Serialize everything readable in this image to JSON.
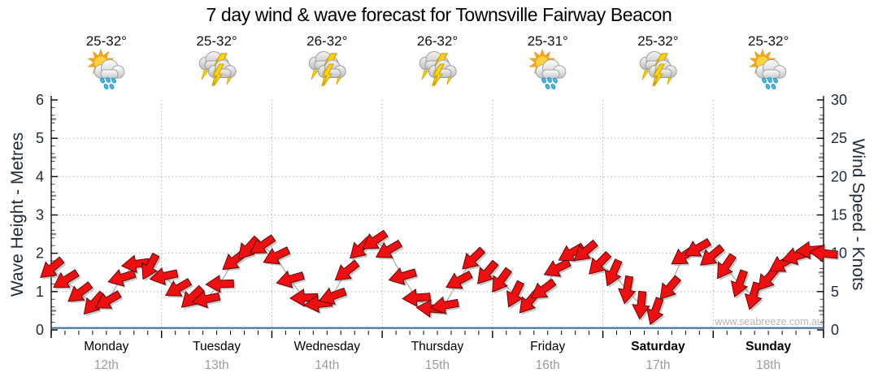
{
  "title": "7 day wind & wave forecast for Townsville Fairway Beacon",
  "watermark": "www.seabreeze.com.au",
  "axes": {
    "left_label": "Wave Height - Metres",
    "right_label": "Wind Speed - Knots",
    "left_ticks": [
      0,
      1,
      2,
      3,
      4,
      5,
      6
    ],
    "right_ticks": [
      0,
      5,
      10,
      15,
      20,
      25,
      30
    ]
  },
  "days": [
    {
      "name": "Monday",
      "date": "12th",
      "temp": "25-32°",
      "icon": "sun-shower",
      "weekend": false
    },
    {
      "name": "Tuesday",
      "date": "13th",
      "temp": "25-32°",
      "icon": "storm",
      "weekend": false
    },
    {
      "name": "Wednesday",
      "date": "14th",
      "temp": "26-32°",
      "icon": "storm",
      "weekend": false
    },
    {
      "name": "Thursday",
      "date": "15th",
      "temp": "26-32°",
      "icon": "storm",
      "weekend": false
    },
    {
      "name": "Friday",
      "date": "16th",
      "temp": "25-31°",
      "icon": "sun-shower",
      "weekend": false
    },
    {
      "name": "Saturday",
      "date": "17th",
      "temp": "25-32°",
      "icon": "storm",
      "weekend": true
    },
    {
      "name": "Sunday",
      "date": "18th",
      "temp": "25-32°",
      "icon": "sun-shower",
      "weekend": true
    }
  ],
  "chart_data": {
    "type": "line",
    "marker": "wind-arrow",
    "title": "7 day wind & wave forecast for Townsville Fairway Beacon",
    "ylabel_left": "Wave Height - Metres",
    "ylabel_right": "Wind Speed - Knots",
    "ylim_left_metres": [
      0,
      6
    ],
    "ylim_right_knots": [
      0,
      30
    ],
    "grid": true,
    "x_categories": [
      "Monday 12th",
      "Tuesday 13th",
      "Wednesday 14th",
      "Thursday 15th",
      "Friday 16th",
      "Saturday 17th",
      "Sunday 18th"
    ],
    "x_step_hours": 3,
    "n_points": 56,
    "series": [
      {
        "name": "Wind Speed",
        "unit": "knots",
        "values": [
          8.0,
          6.5,
          4.8,
          3.4,
          3.8,
          6.8,
          8.6,
          8.2,
          7.0,
          5.4,
          4.2,
          4.0,
          6.0,
          9.0,
          10.6,
          11.0,
          9.6,
          6.6,
          4.2,
          3.4,
          4.4,
          7.6,
          10.6,
          11.6,
          10.4,
          7.0,
          4.2,
          2.8,
          3.2,
          6.4,
          9.2,
          7.4,
          6.4,
          4.6,
          3.6,
          5.2,
          8.0,
          10.0,
          10.2,
          8.6,
          7.4,
          5.2,
          3.2,
          2.4,
          5.4,
          9.6,
          10.6,
          9.6,
          8.2,
          6.0,
          4.4,
          6.6,
          8.6,
          9.6,
          10.4,
          10.0
        ]
      },
      {
        "name": "Wind Arrow Rotation",
        "unit": "deg_screen_cw_from_east",
        "values": [
          140,
          148,
          143,
          132,
          150,
          163,
          172,
          118,
          168,
          150,
          136,
          168,
          178,
          142,
          132,
          146,
          154,
          164,
          178,
          174,
          160,
          142,
          136,
          146,
          150,
          164,
          176,
          184,
          170,
          152,
          136,
          130,
          126,
          116,
          130,
          144,
          154,
          150,
          140,
          134,
          114,
          100,
          96,
          110,
          130,
          146,
          150,
          140,
          124,
          110,
          106,
          130,
          150,
          164,
          176,
          186
        ]
      },
      {
        "name": "Wave Height",
        "unit": "metres",
        "constant_value": 0.05
      }
    ],
    "colors": {
      "arrow_fill": "#ee1010",
      "arrow_outline": "#550000",
      "wave_line": "#336699",
      "grid_line": "#b0b0b0",
      "axis_text": "#1f2a38",
      "date_text": "#9b9b9b"
    }
  }
}
